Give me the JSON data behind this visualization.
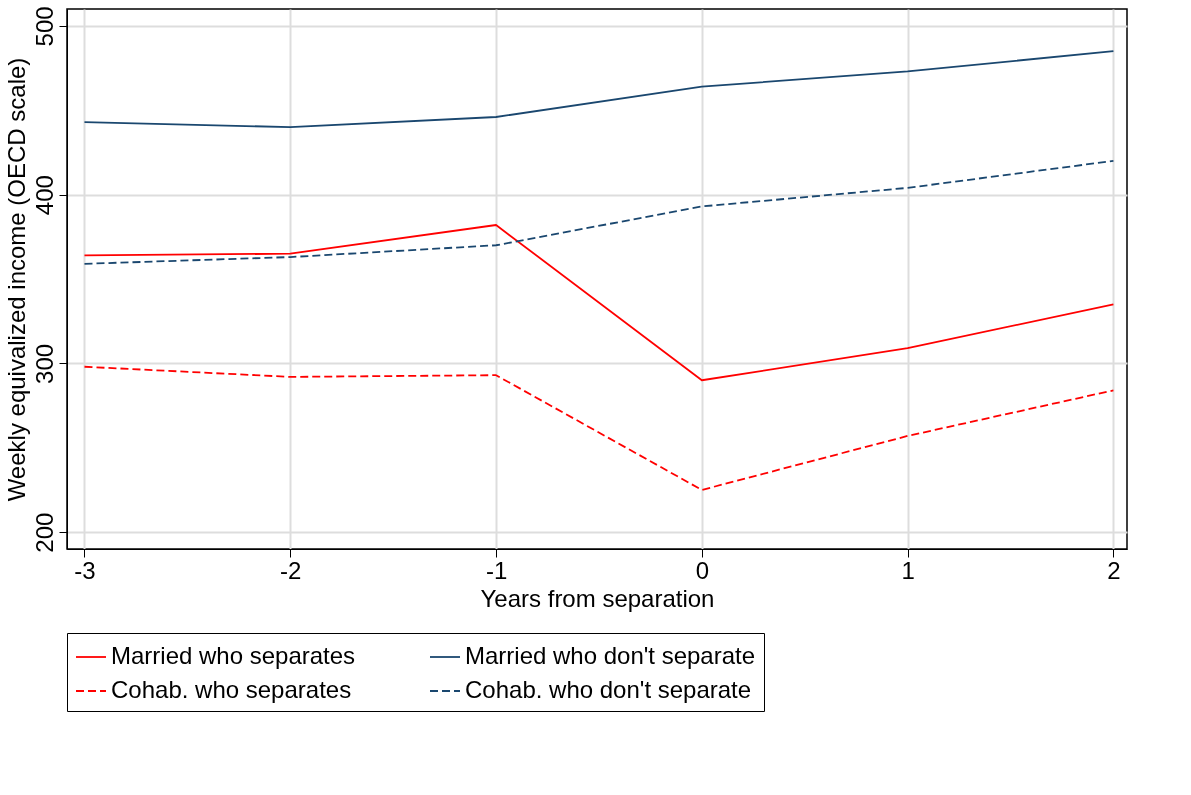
{
  "chart_data": {
    "type": "line",
    "xlabel": "Years from separation",
    "ylabel": "Weekly equivalized income (OECD scale)",
    "x": [
      -3,
      -2,
      -1,
      0,
      1,
      2
    ],
    "xlim": [
      -3.085,
      2.066
    ],
    "xticks": [
      -3,
      -2,
      -1,
      0,
      1,
      2
    ],
    "ylim": [
      190,
      510
    ],
    "yticks": [
      200,
      300,
      400,
      500
    ],
    "grid": true,
    "legend": "bottom",
    "marker": "none",
    "series": [
      {
        "name": "Married who separates",
        "color": "#ff0000",
        "line_style": "solid",
        "values": [
          364,
          365,
          382,
          290,
          309,
          335
        ]
      },
      {
        "name": "Married who don't separate",
        "color": "#1a476f",
        "line_style": "solid",
        "values": [
          443,
          440,
          446,
          464,
          473,
          485
        ]
      },
      {
        "name": "Cohab. who separates",
        "color": "#ff0000",
        "line_style": "dashed",
        "values": [
          298,
          292,
          293,
          225,
          257,
          284
        ]
      },
      {
        "name": "Cohab. who don't separate",
        "color": "#1a476f",
        "line_style": "dashed",
        "values": [
          359,
          363,
          370,
          393,
          404,
          420
        ]
      }
    ]
  }
}
